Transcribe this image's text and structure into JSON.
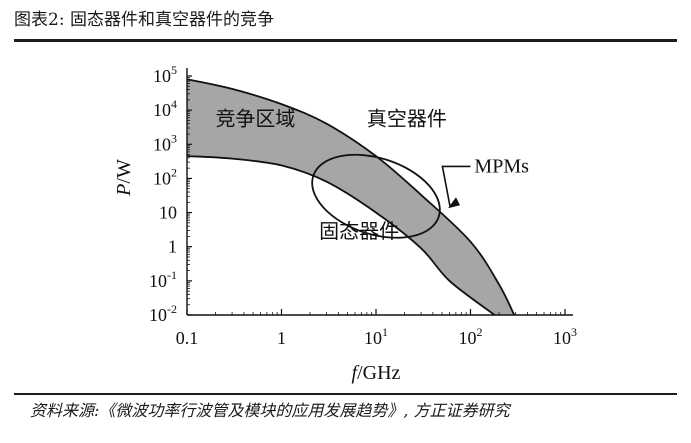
{
  "header": {
    "title": "图表2:   固态器件和真空器件的竞争"
  },
  "source": "资料来源:《微波功率行波管及模块的应用发展趋势》, 方正证券研究",
  "chart_data": {
    "type": "area",
    "title": "",
    "xlabel_italic": "f",
    "xlabel_rest": "/GHz",
    "ylabel_italic": "P",
    "ylabel_rest": "/W",
    "x_scale": "log",
    "y_scale": "log",
    "xlim": [
      0.1,
      1000
    ],
    "ylim": [
      0.01,
      100000
    ],
    "x_ticks": [
      {
        "value": 0.1,
        "label": "0.1"
      },
      {
        "value": 1,
        "label": "1"
      },
      {
        "value": 10,
        "base": "10",
        "exp": "1"
      },
      {
        "value": 100,
        "base": "10",
        "exp": "2"
      },
      {
        "value": 1000,
        "base": "10",
        "exp": "3"
      }
    ],
    "y_ticks": [
      {
        "value": 100000,
        "base": "10",
        "exp": "5"
      },
      {
        "value": 10000,
        "base": "10",
        "exp": "4"
      },
      {
        "value": 1000,
        "base": "10",
        "exp": "3"
      },
      {
        "value": 100,
        "base": "10",
        "exp": "2"
      },
      {
        "value": 10,
        "base": "10",
        "exp": ""
      },
      {
        "value": 1,
        "base": "1",
        "exp": ""
      },
      {
        "value": 0.1,
        "base": "10",
        "exp": "-1"
      },
      {
        "value": 0.01,
        "base": "10",
        "exp": "-2"
      }
    ],
    "fill_color": "#a6a6a6",
    "grid": false,
    "region": {
      "name": "竞争区域",
      "upper_boundary": [
        {
          "x": 0.1,
          "y": 80000
        },
        {
          "x": 0.3,
          "y": 42000
        },
        {
          "x": 1,
          "y": 15000
        },
        {
          "x": 3,
          "y": 4000
        },
        {
          "x": 10,
          "y": 450
        },
        {
          "x": 30,
          "y": 33
        },
        {
          "x": 100,
          "y": 1.4
        },
        {
          "x": 200,
          "y": 0.08
        },
        {
          "x": 290,
          "y": 0.01
        }
      ],
      "lower_boundary": [
        {
          "x": 0.1,
          "y": 450
        },
        {
          "x": 0.3,
          "y": 380
        },
        {
          "x": 1,
          "y": 240
        },
        {
          "x": 3,
          "y": 80
        },
        {
          "x": 10,
          "y": 10
        },
        {
          "x": 30,
          "y": 0.9
        },
        {
          "x": 60,
          "y": 0.1
        },
        {
          "x": 180,
          "y": 0.01
        }
      ]
    },
    "ellipse_center": {
      "x": 10,
      "y": 30
    },
    "annotations": [
      {
        "text": "竞争区域",
        "x": 0.2,
        "y": 3500
      },
      {
        "text": "真空器件",
        "x": 8,
        "y": 3500
      },
      {
        "text": "固态器件",
        "x": 2.5,
        "y": 1.8
      },
      {
        "text": "MPMs",
        "x": 110,
        "y": 150
      }
    ]
  }
}
